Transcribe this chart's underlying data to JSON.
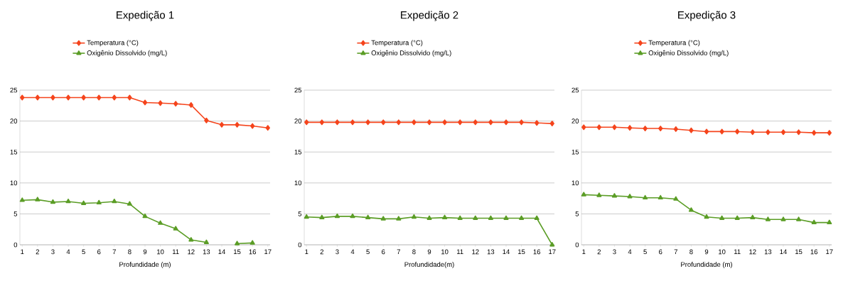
{
  "chart_data": [
    {
      "type": "line",
      "title": "Expedição 1",
      "xlabel": "Profundidade (m)",
      "categories": [
        "1",
        "2",
        "3",
        "4",
        "5",
        "6",
        "7",
        "8",
        "9",
        "10",
        "11",
        "12",
        "13",
        "14",
        "15",
        "16",
        "17"
      ],
      "series": [
        {
          "name": "Temperatura (°C)",
          "color": "#f5441c",
          "marker": "diamond",
          "values": [
            23.8,
            23.8,
            23.8,
            23.8,
            23.8,
            23.8,
            23.8,
            23.8,
            23.0,
            22.9,
            22.8,
            22.6,
            20.1,
            19.4,
            19.4,
            19.2,
            18.9
          ]
        },
        {
          "name": "Oxigênio Dissolvido (mg/L)",
          "color": "#5b9d26",
          "marker": "triangle",
          "values": [
            7.2,
            7.3,
            6.9,
            7.0,
            6.7,
            6.8,
            7.0,
            6.6,
            4.6,
            3.5,
            2.6,
            0.8,
            0.4,
            null,
            0.2,
            0.3,
            null
          ]
        }
      ],
      "ylim": [
        0,
        25
      ],
      "yticks": [
        0,
        5,
        10,
        15,
        20,
        25
      ],
      "grid": "y",
      "legend": "top"
    },
    {
      "type": "line",
      "title": "Expedição 2",
      "xlabel": "Profundidade(m)",
      "categories": [
        "1",
        "2",
        "3",
        "4",
        "5",
        "6",
        "7",
        "8",
        "9",
        "10",
        "11",
        "12",
        "13",
        "14",
        "15",
        "16",
        "17"
      ],
      "series": [
        {
          "name": "Temperatura (°C)",
          "color": "#f5441c",
          "marker": "diamond",
          "values": [
            19.8,
            19.8,
            19.8,
            19.8,
            19.8,
            19.8,
            19.8,
            19.8,
            19.8,
            19.8,
            19.8,
            19.8,
            19.8,
            19.8,
            19.8,
            19.7,
            19.6
          ]
        },
        {
          "name": "Oxigênio Dissolvido (mg/L)",
          "color": "#5b9d26",
          "marker": "triangle",
          "values": [
            4.5,
            4.4,
            4.6,
            4.6,
            4.4,
            4.2,
            4.2,
            4.5,
            4.3,
            4.4,
            4.3,
            4.3,
            4.3,
            4.3,
            4.3,
            4.3,
            0
          ]
        }
      ],
      "ylim": [
        0,
        25
      ],
      "yticks": [
        0,
        5,
        10,
        15,
        20,
        25
      ],
      "grid": "y",
      "legend": "top"
    },
    {
      "type": "line",
      "title": "Expedição 3",
      "xlabel": "Profundidade (m)",
      "categories": [
        "1",
        "2",
        "3",
        "4",
        "5",
        "6",
        "7",
        "8",
        "9",
        "10",
        "11",
        "12",
        "13",
        "14",
        "15",
        "16",
        "17"
      ],
      "series": [
        {
          "name": "Temperatura (°C)",
          "color": "#f5441c",
          "marker": "diamond",
          "values": [
            19.0,
            19.0,
            19.0,
            18.9,
            18.8,
            18.8,
            18.7,
            18.5,
            18.3,
            18.3,
            18.3,
            18.2,
            18.2,
            18.2,
            18.2,
            18.1,
            18.1
          ]
        },
        {
          "name": "Oxigênio Dissolvido (mg/L)",
          "color": "#5b9d26",
          "marker": "triangle",
          "values": [
            8.1,
            8.0,
            7.9,
            7.8,
            7.6,
            7.6,
            7.4,
            5.6,
            4.5,
            4.3,
            4.3,
            4.4,
            4.1,
            4.1,
            4.1,
            3.6,
            3.6
          ]
        }
      ],
      "ylim": [
        0,
        25
      ],
      "yticks": [
        0,
        5,
        10,
        15,
        20,
        25
      ],
      "grid": "y",
      "legend": "top"
    }
  ]
}
